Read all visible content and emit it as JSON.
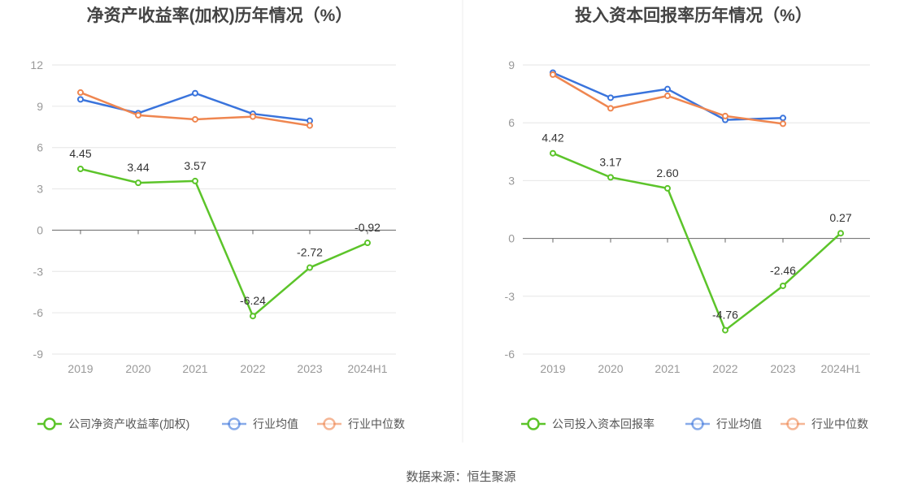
{
  "chart_data": [
    {
      "type": "line",
      "title": "净资产收益率(加权)历年情况（%）",
      "categories": [
        "2019",
        "2020",
        "2021",
        "2022",
        "2023",
        "2024H1"
      ],
      "ylim": [
        -9,
        12
      ],
      "yticks": [
        12,
        9,
        6,
        3,
        0,
        -3,
        -6,
        -9
      ],
      "grid": true,
      "legend_position": "bottom",
      "series": [
        {
          "name": "公司净资产收益率(加权)",
          "color": "#5cc42a",
          "values": [
            4.45,
            3.44,
            3.57,
            -6.24,
            -2.72,
            -0.92
          ],
          "labels": [
            "4.45",
            "3.44",
            "3.57",
            "-6.24",
            "-2.72",
            "-0.92"
          ]
        },
        {
          "name": "行业均值",
          "color": "#3a74dc",
          "values": [
            9.5,
            8.5,
            9.95,
            8.45,
            7.95,
            null
          ]
        },
        {
          "name": "行业中位数",
          "color": "#ef8650",
          "values": [
            10.0,
            8.35,
            8.05,
            8.25,
            7.6,
            null
          ]
        }
      ]
    },
    {
      "type": "line",
      "title": "投入资本回报率历年情况（%）",
      "categories": [
        "2019",
        "2020",
        "2021",
        "2022",
        "2023",
        "2024H1"
      ],
      "ylim": [
        -6,
        9
      ],
      "yticks": [
        9,
        6,
        3,
        0,
        -3,
        -6
      ],
      "grid": true,
      "legend_position": "bottom",
      "series": [
        {
          "name": "公司投入资本回报率",
          "color": "#5cc42a",
          "values": [
            4.42,
            3.17,
            2.6,
            -4.76,
            -2.46,
            0.27
          ],
          "labels": [
            "4.42",
            "3.17",
            "2.60",
            "-4.76",
            "-2.46",
            "0.27"
          ]
        },
        {
          "name": "行业均值",
          "color": "#3a74dc",
          "values": [
            8.6,
            7.3,
            7.75,
            6.15,
            6.25,
            null
          ]
        },
        {
          "name": "行业中位数",
          "color": "#ef8650",
          "values": [
            8.5,
            6.75,
            7.4,
            6.35,
            5.95,
            null
          ]
        }
      ]
    }
  ],
  "footer": {
    "source": "数据来源：恒生聚源"
  }
}
